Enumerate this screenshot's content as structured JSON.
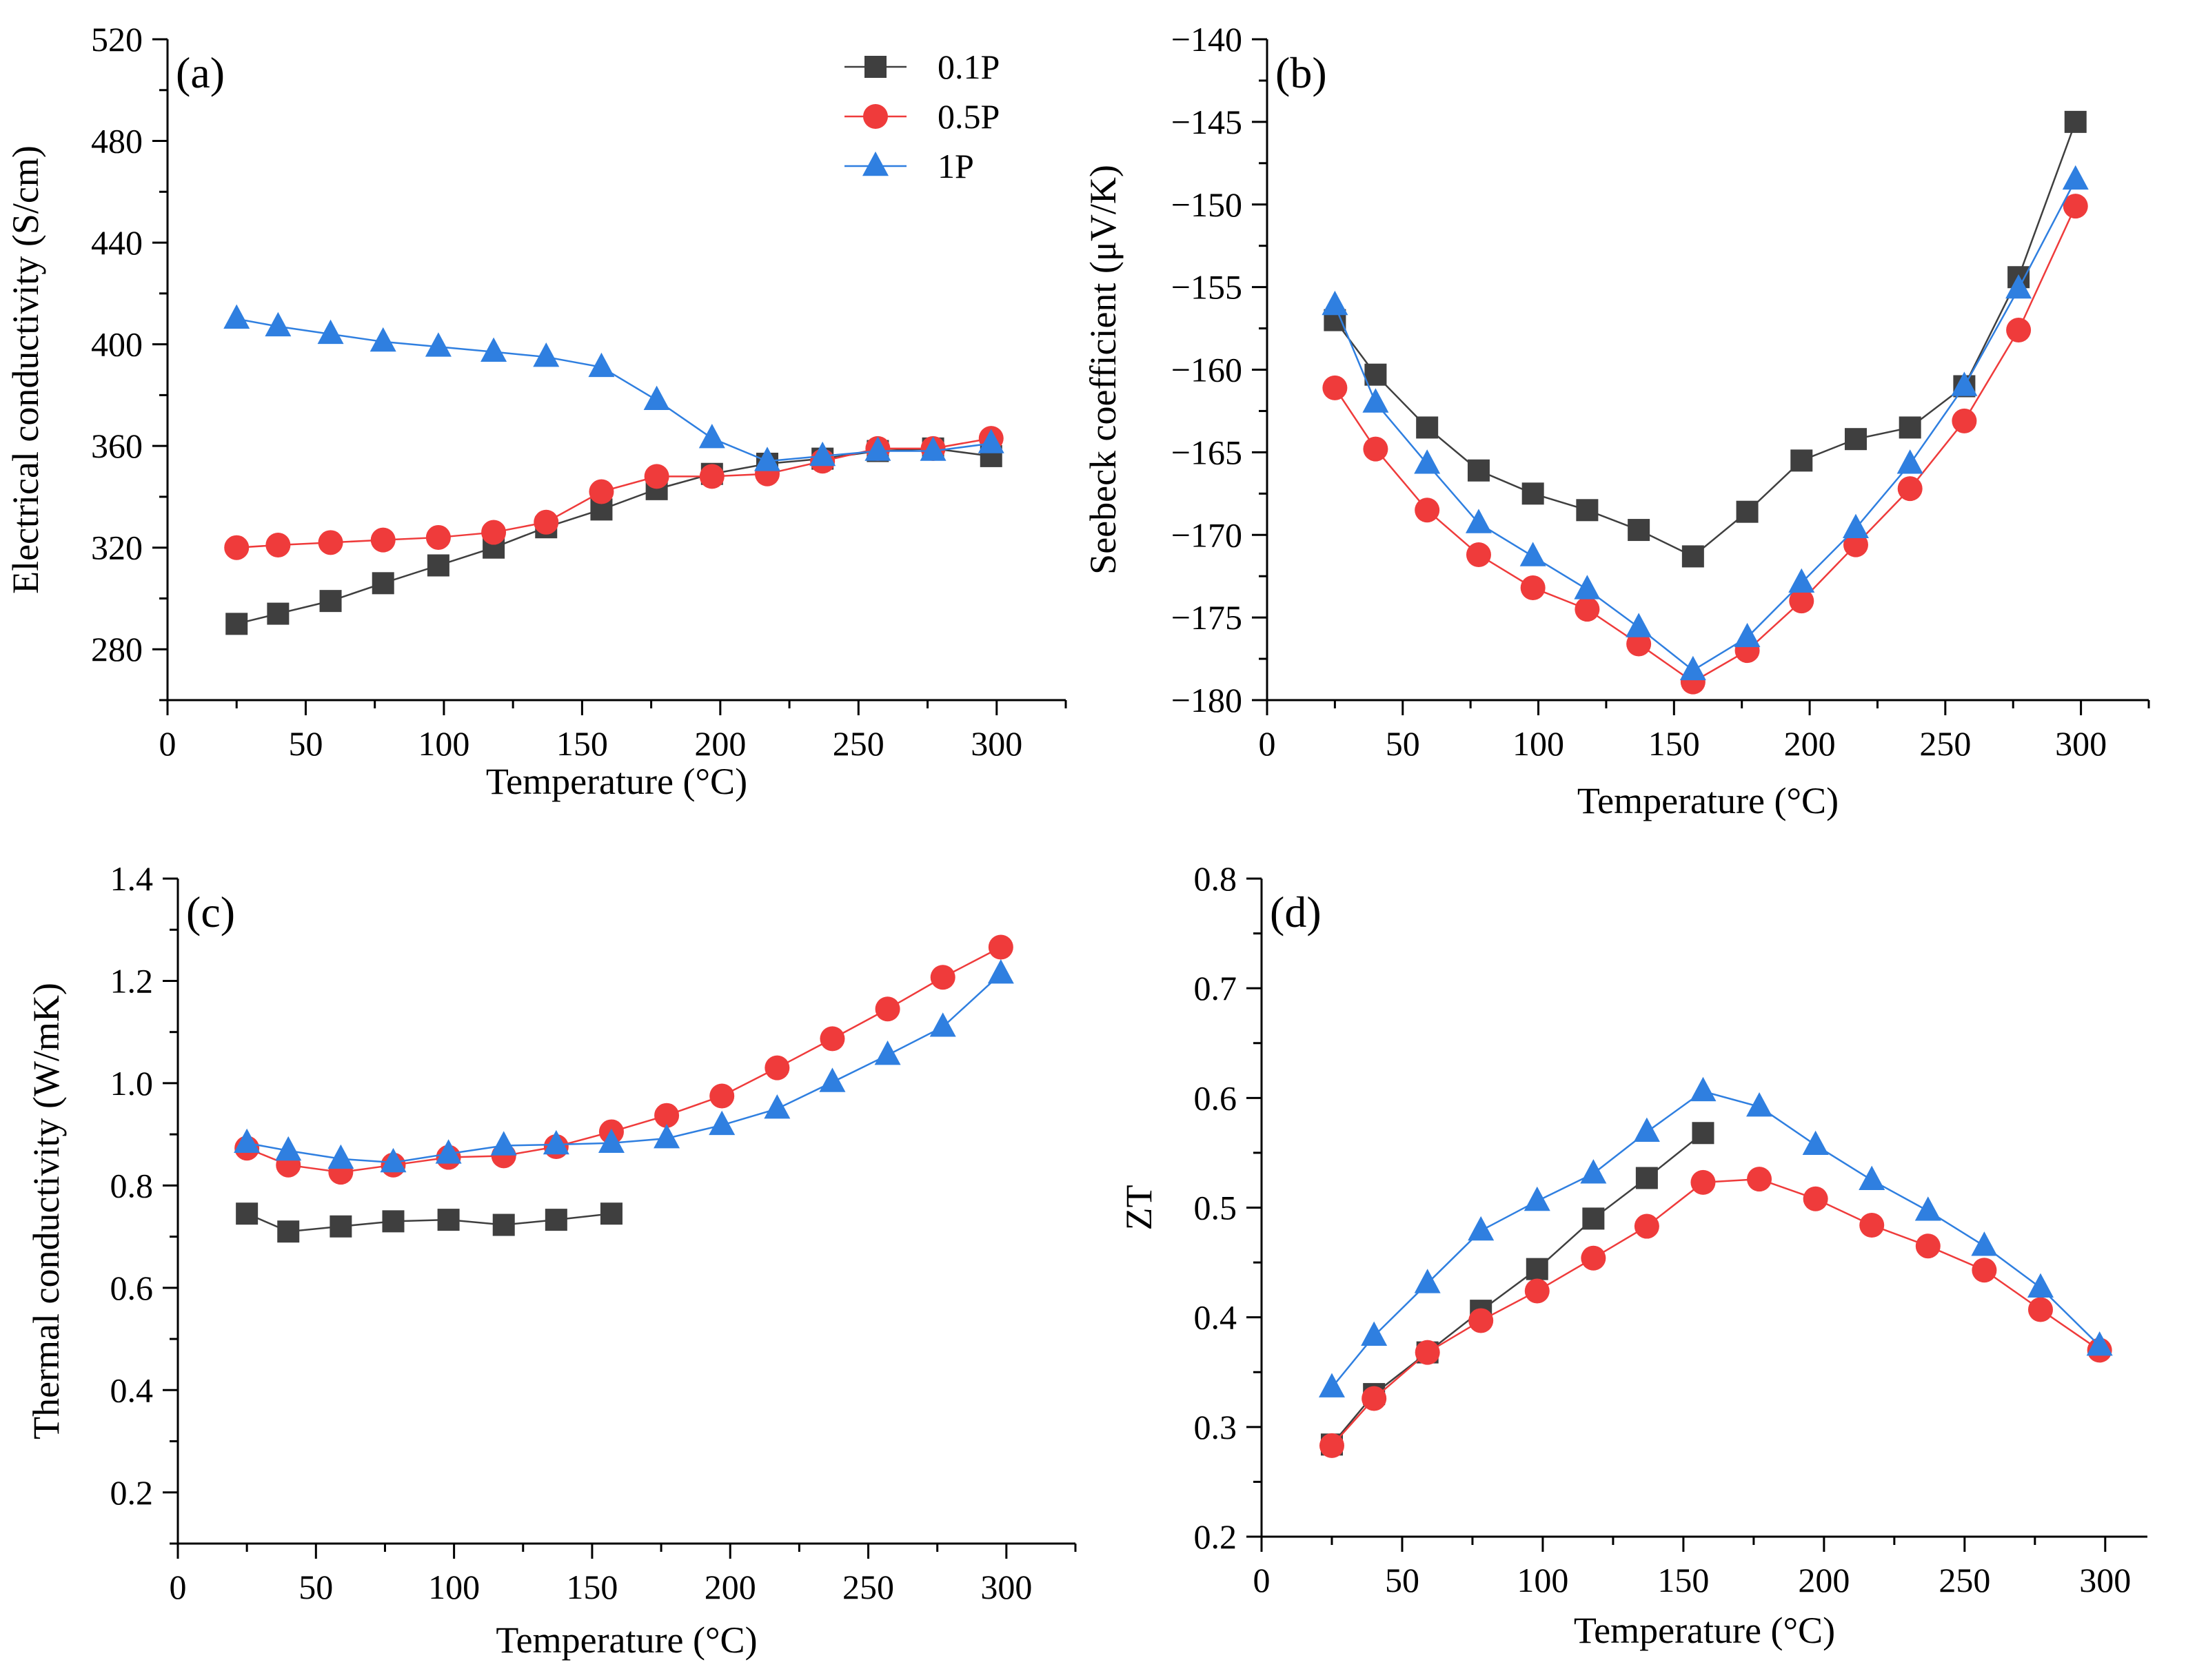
{
  "chart_data": [
    {
      "type": "line",
      "panel_label": "(a)",
      "title": "",
      "xlabel": "Temperature (°C)",
      "ylabel": "Electrical conductivity (S/cm)",
      "xlim": [
        0,
        325
      ],
      "ylim": [
        260,
        520
      ],
      "xticks": [
        0,
        50,
        100,
        150,
        200,
        250,
        300
      ],
      "yticks": [
        280,
        320,
        360,
        400,
        440,
        480,
        520
      ],
      "yticklabels": [
        "280",
        "320",
        "360",
        "400",
        "440",
        "480",
        "520"
      ],
      "legend": {
        "position": "top-right"
      },
      "series": [
        {
          "name": "0.1P",
          "x": [
            25,
            40,
            59,
            78,
            98,
            118,
            137,
            157,
            177,
            197,
            217,
            237,
            257,
            277,
            298
          ],
          "values": [
            290,
            294,
            299,
            306,
            313,
            320,
            328,
            335,
            343,
            349,
            353,
            355,
            358,
            359,
            356
          ]
        },
        {
          "name": "0.5P",
          "x": [
            25,
            40,
            59,
            78,
            98,
            118,
            137,
            157,
            177,
            197,
            217,
            237,
            257,
            277,
            298
          ],
          "values": [
            320,
            321,
            322,
            323,
            324,
            326,
            330,
            342,
            348,
            348,
            349,
            354,
            359,
            359,
            363
          ]
        },
        {
          "name": "1P",
          "x": [
            25,
            40,
            59,
            78,
            98,
            118,
            137,
            157,
            177,
            197,
            217,
            237,
            257,
            277,
            298
          ],
          "values": [
            410,
            407,
            404,
            401,
            399,
            397,
            395,
            391,
            378,
            363,
            354,
            356,
            358,
            358,
            361
          ]
        }
      ]
    },
    {
      "type": "line",
      "panel_label": "(b)",
      "title": "",
      "xlabel": "Temperature (°C)",
      "ylabel": "Seebeck coefficient (μV/K)",
      "xlim": [
        0,
        325
      ],
      "ylim": [
        -180,
        -140
      ],
      "xticks": [
        0,
        50,
        100,
        150,
        200,
        250,
        300
      ],
      "yticks": [
        -180,
        -175,
        -170,
        -165,
        -160,
        -155,
        -150,
        -145,
        -140
      ],
      "yticklabels": [
        "−180",
        "−175",
        "−170",
        "−165",
        "−160",
        "−155",
        "−150",
        "−145",
        "−140"
      ],
      "series": [
        {
          "name": "0.1P",
          "x": [
            25,
            40,
            59,
            78,
            98,
            118,
            137,
            157,
            177,
            197,
            217,
            237,
            257,
            277,
            298
          ],
          "values": [
            -157,
            -160.3,
            -163.5,
            -166.1,
            -167.5,
            -168.5,
            -169.7,
            -171.3,
            -168.6,
            -165.5,
            -164.2,
            -163.5,
            -161,
            -154.4,
            -145
          ]
        },
        {
          "name": "0.5P",
          "x": [
            25,
            40,
            59,
            78,
            98,
            118,
            137,
            157,
            177,
            197,
            217,
            237,
            257,
            277,
            298
          ],
          "values": [
            -161.1,
            -164.8,
            -168.5,
            -171.2,
            -173.2,
            -174.5,
            -176.6,
            -178.9,
            -177,
            -174,
            -170.6,
            -167.2,
            -163.1,
            -157.6,
            -150.1
          ]
        },
        {
          "name": "1P",
          "x": [
            25,
            40,
            59,
            78,
            98,
            118,
            137,
            157,
            177,
            197,
            217,
            237,
            257,
            277,
            298
          ],
          "values": [
            -156.1,
            -162,
            -165.7,
            -169.3,
            -171.3,
            -173.3,
            -175.6,
            -178.2,
            -176.2,
            -172.9,
            -169.6,
            -165.7,
            -161,
            -155.1,
            -148.5
          ]
        }
      ]
    },
    {
      "type": "line",
      "panel_label": "(c)",
      "title": "",
      "xlabel": "Temperature (°C)",
      "ylabel": "Thermal conductivity (W/mK)",
      "xlim": [
        0,
        325
      ],
      "ylim": [
        0.1,
        1.4
      ],
      "xticks": [
        0,
        50,
        100,
        150,
        200,
        250,
        300
      ],
      "yticks": [
        0.2,
        0.4,
        0.6,
        0.8,
        1.0,
        1.2,
        1.4
      ],
      "yticklabels": [
        "0.2",
        "0.4",
        "0.6",
        "0.8",
        "1.0",
        "1.2",
        "1.4"
      ],
      "series": [
        {
          "name": "0.1P",
          "x": [
            25,
            40,
            59,
            78,
            98,
            118,
            137,
            157
          ],
          "values": [
            0.745,
            0.71,
            0.72,
            0.73,
            0.733,
            0.723,
            0.733,
            0.745
          ]
        },
        {
          "name": "0.5P",
          "x": [
            25,
            40,
            59,
            78,
            98,
            118,
            137,
            157,
            177,
            197,
            217,
            237,
            257,
            277,
            298
          ],
          "values": [
            0.873,
            0.84,
            0.826,
            0.84,
            0.855,
            0.858,
            0.876,
            0.905,
            0.937,
            0.975,
            1.03,
            1.087,
            1.145,
            1.207,
            1.266
          ]
        },
        {
          "name": "1P",
          "x": [
            25,
            40,
            59,
            78,
            98,
            118,
            137,
            157,
            177,
            197,
            217,
            237,
            257,
            277,
            298
          ],
          "values": [
            0.883,
            0.868,
            0.852,
            0.845,
            0.862,
            0.878,
            0.88,
            0.883,
            0.892,
            0.918,
            0.95,
            1.002,
            1.055,
            1.11,
            1.214
          ]
        }
      ]
    },
    {
      "type": "line",
      "panel_label": "(d)",
      "title": "",
      "xlabel": "Temperature (°C)",
      "ylabel": "ZT",
      "xlim": [
        0,
        315
      ],
      "ylim": [
        0.2,
        0.8
      ],
      "xticks": [
        0,
        50,
        100,
        150,
        200,
        250,
        300
      ],
      "yticks": [
        0.2,
        0.3,
        0.4,
        0.5,
        0.6,
        0.7,
        0.8
      ],
      "yticklabels": [
        "0.2",
        "0.3",
        "0.4",
        "0.5",
        "0.6",
        "0.7",
        "0.8"
      ],
      "series": [
        {
          "name": "0.1P",
          "x": [
            25,
            40,
            59,
            78,
            98,
            118,
            137,
            157
          ],
          "values": [
            0.284,
            0.33,
            0.368,
            0.406,
            0.444,
            0.49,
            0.527,
            0.568
          ]
        },
        {
          "name": "0.5P",
          "x": [
            25,
            40,
            59,
            78,
            98,
            118,
            137,
            157,
            177,
            197,
            217,
            237,
            257,
            277,
            298
          ],
          "values": [
            0.283,
            0.326,
            0.368,
            0.397,
            0.424,
            0.454,
            0.483,
            0.523,
            0.526,
            0.508,
            0.484,
            0.465,
            0.443,
            0.407,
            0.37
          ]
        },
        {
          "name": "1P",
          "x": [
            25,
            40,
            59,
            78,
            98,
            118,
            137,
            157,
            177,
            197,
            217,
            237,
            257,
            277,
            298
          ],
          "values": [
            0.336,
            0.383,
            0.431,
            0.479,
            0.506,
            0.531,
            0.569,
            0.606,
            0.592,
            0.557,
            0.525,
            0.497,
            0.465,
            0.427,
            0.374
          ]
        }
      ]
    }
  ],
  "series_styles": [
    {
      "name": "0.1P",
      "marker": "square",
      "color": "#3f3f3f",
      "line": "#3f3f3f"
    },
    {
      "name": "0.5P",
      "marker": "circle",
      "color": "#ef3b3b",
      "line": "#ef3b3b"
    },
    {
      "name": "1P",
      "marker": "triangle",
      "color": "#2f7fe0",
      "line": "#2f7fe0"
    }
  ],
  "legend": {
    "entries": [
      "0.1P",
      "0.5P",
      "1P"
    ]
  }
}
